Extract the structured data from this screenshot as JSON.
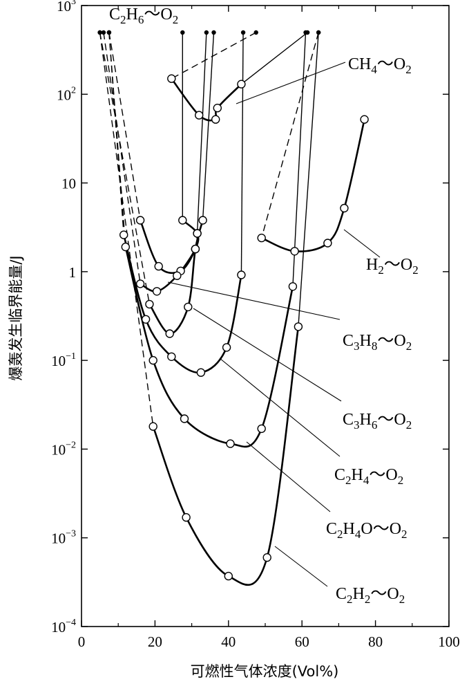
{
  "chart_data": {
    "type": "line",
    "title": "",
    "xlabel": "可燃性气体浓度(Vol%)",
    "ylabel": "爆轰发生临界能量/J",
    "xlim": [
      0,
      100
    ],
    "ylim": [
      0.0001,
      1000
    ],
    "yscale": "log",
    "grid": false,
    "legend": "inline labels with leader lines",
    "x_ticks": [
      "0",
      "20",
      "40",
      "60",
      "80",
      "100"
    ],
    "y_ticks": [
      {
        "base": "10",
        "exp": "3"
      },
      {
        "base": "10",
        "exp": "2"
      },
      {
        "base": "10",
        "exp": ""
      },
      {
        "base": "1",
        "exp": ""
      },
      {
        "base": "10",
        "exp": "−1"
      },
      {
        "base": "10",
        "exp": "−2"
      },
      {
        "base": "10",
        "exp": "−3"
      },
      {
        "base": "10",
        "exp": "−4"
      }
    ],
    "series": [
      {
        "name": "CH₄～O₂",
        "label_main": "CH",
        "label_sub1": "4",
        "label_mid": "～O",
        "label_sub2": "2",
        "points": [
          [
            24.5,
            150
          ],
          [
            32,
            58
          ],
          [
            36.5,
            52
          ],
          [
            37,
            70
          ],
          [
            43.5,
            130
          ]
        ],
        "limits": [
          47.5,
          61.5
        ]
      },
      {
        "name": "H₂～O₂",
        "label_main": "H",
        "label_sub1": "2",
        "label_mid": "～O",
        "label_sub2": "2",
        "points": [
          [
            49,
            2.4
          ],
          [
            58,
            1.7
          ],
          [
            67,
            2.1
          ],
          [
            71.5,
            5.2
          ],
          [
            77,
            52
          ]
        ],
        "limits": [
          64.5
        ]
      },
      {
        "name": "C₂H₆～O₂",
        "label_main": "C",
        "label_sub1": "2",
        "label_mid": "H",
        "label_sub2": "6",
        "label_tail": "～O",
        "label_sub3": "2",
        "points": [
          [
            16,
            3.8
          ],
          [
            21,
            1.15
          ],
          [
            27,
            1.02
          ],
          [
            31,
            1.8
          ],
          [
            31.5,
            2.7
          ],
          [
            27.5,
            3.8
          ]
        ],
        "limits": [
          7.5,
          27.5
        ]
      },
      {
        "name": "C₃H₈～O₂",
        "label_main": "C",
        "label_sub1": "3",
        "label_mid": "H",
        "label_sub2": "8",
        "label_tail": "～O",
        "label_sub3": "2",
        "points": [
          [
            16,
            0.73
          ],
          [
            20.5,
            0.6
          ],
          [
            26,
            0.9
          ],
          [
            31,
            1.8
          ],
          [
            31.5,
            2.7
          ]
        ],
        "limits": [
          6,
          34
        ]
      },
      {
        "name": "C₃H₆～O₂",
        "label_main": "C",
        "label_sub1": "3",
        "label_mid": "H",
        "label_sub2": "6",
        "label_tail": "～O",
        "label_sub3": "2",
        "points": [
          [
            18.5,
            0.43
          ],
          [
            24,
            0.2
          ],
          [
            29,
            0.4
          ],
          [
            31,
            1.8
          ],
          [
            33,
            3.8
          ]
        ],
        "limits": [
          5,
          36
        ]
      },
      {
        "name": "C₂H₄～O₂",
        "label_main": "C",
        "label_sub1": "2",
        "label_mid": "H",
        "label_sub2": "4",
        "label_tail": "～O",
        "label_sub3": "2",
        "points": [
          [
            11.5,
            2.6
          ],
          [
            17.5,
            0.29
          ],
          [
            24.5,
            0.11
          ],
          [
            32.5,
            0.073
          ],
          [
            39.5,
            0.14
          ],
          [
            43.5,
            0.92
          ]
        ],
        "limits": [
          7.5,
          44
        ]
      },
      {
        "name": "C₂H₄O～O₂",
        "label_main": "C",
        "label_sub1": "2",
        "label_mid": "H",
        "label_sub2": "4",
        "label_tail": "O～O",
        "label_sub3": "2",
        "points": [
          [
            12,
            1.9
          ],
          [
            19.5,
            0.1
          ],
          [
            28,
            0.022
          ],
          [
            40.5,
            0.0115
          ],
          [
            49,
            0.017
          ],
          [
            57.5,
            0.68
          ]
        ],
        "limits": [
          7.5,
          61
        ]
      },
      {
        "name": "C₂H₂～O₂",
        "label_main": "C",
        "label_sub1": "2",
        "label_mid": "H",
        "label_sub2": "2",
        "label_tail": "～O",
        "label_sub3": "2",
        "points": [
          [
            19.5,
            0.018
          ],
          [
            28.5,
            0.0017
          ],
          [
            40,
            0.00037
          ],
          [
            50.5,
            0.0006
          ],
          [
            59,
            0.24
          ]
        ],
        "limits": [
          5,
          64.5
        ]
      }
    ]
  }
}
